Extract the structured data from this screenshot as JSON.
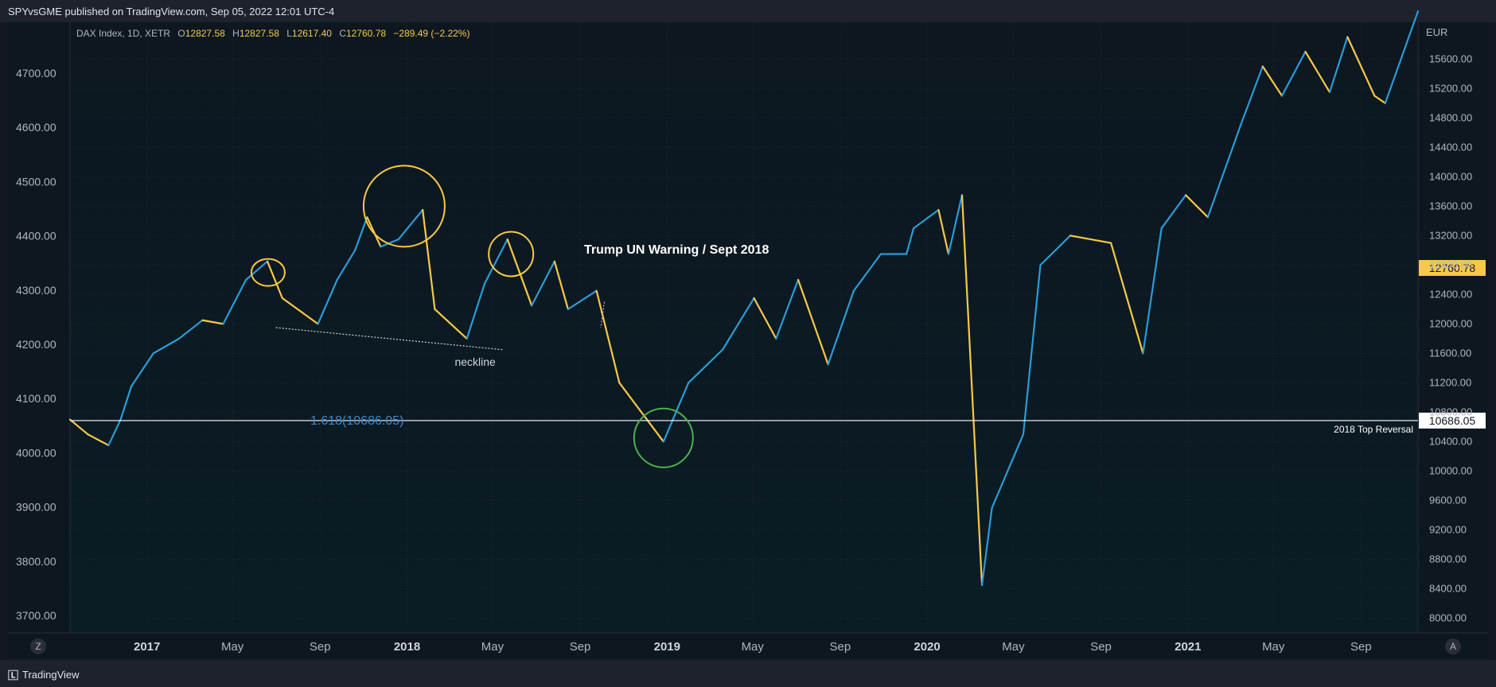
{
  "header": {
    "publisher": "SPYvsGME published on TradingView.com, Sep 05, 2022 12:01 UTC-4"
  },
  "footer": {
    "brand": "TradingView"
  },
  "legend": {
    "symbol": "DAX Index, 1D, XETR",
    "open_label": "O",
    "open": "12827.58",
    "high_label": "H",
    "high": "12827.58",
    "low_label": "L",
    "low": "12617.40",
    "close_label": "C",
    "close": "12760.78",
    "change": "−289.49 (−2.22%)"
  },
  "buttons": {
    "left_scale": "Z",
    "right_scale": "A"
  },
  "colors": {
    "background": "#0c1a23",
    "up": "#2b9bd6",
    "down": "#f7c948",
    "grid": "#1f2b35",
    "circle_yellow": "#f7c948",
    "circle_green": "#4caf50",
    "fib": "#3f86c9"
  },
  "chart_data": {
    "type": "line",
    "title": "DAX Index, 1D, XETR",
    "currency": "EUR",
    "right_axis_ticks": [
      "15600.00",
      "15200.00",
      "14800.00",
      "14400.00",
      "14000.00",
      "13600.00",
      "13200.00",
      "12800.00",
      "12400.00",
      "12000.00",
      "11600.00",
      "11200.00",
      "10800.00",
      "10400.00",
      "10000.00",
      "9600.00",
      "9200.00",
      "8800.00",
      "8400.00",
      "8000.00"
    ],
    "left_axis_ticks": [
      "4700.00",
      "4600.00",
      "4500.00",
      "4400.00",
      "4300.00",
      "4200.00",
      "4100.00",
      "4000.00",
      "3900.00",
      "3800.00",
      "3700.00"
    ],
    "x_axis_ticks": [
      {
        "label": "2017",
        "bold": true
      },
      {
        "label": "May",
        "bold": false
      },
      {
        "label": "Sep",
        "bold": false
      },
      {
        "label": "2018",
        "bold": true
      },
      {
        "label": "May",
        "bold": false
      },
      {
        "label": "Sep",
        "bold": false
      },
      {
        "label": "2019",
        "bold": true
      },
      {
        "label": "May",
        "bold": false
      },
      {
        "label": "Sep",
        "bold": false
      },
      {
        "label": "2020",
        "bold": true
      },
      {
        "label": "May",
        "bold": false
      },
      {
        "label": "Sep",
        "bold": false
      },
      {
        "label": "2021",
        "bold": true
      },
      {
        "label": "May",
        "bold": false
      },
      {
        "label": "Sep",
        "bold": false
      }
    ],
    "ylim": [
      7800,
      16100
    ],
    "xlim": [
      "2016-09-15",
      "2021-11-20"
    ],
    "series": [
      {
        "points": [
          [
            "2016-09-15",
            10700
          ],
          [
            "2016-10-10",
            10500
          ],
          [
            "2016-11-08",
            10350
          ],
          [
            "2016-11-25",
            10700
          ],
          [
            "2016-12-10",
            11150
          ],
          [
            "2017-01-10",
            11600
          ],
          [
            "2017-02-15",
            11800
          ],
          [
            "2017-03-20",
            12050
          ],
          [
            "2017-04-18",
            12000
          ],
          [
            "2017-05-20",
            12600
          ],
          [
            "2017-06-19",
            12850
          ],
          [
            "2017-07-10",
            12350
          ],
          [
            "2017-08-29",
            12000
          ],
          [
            "2017-09-25",
            12600
          ],
          [
            "2017-10-20",
            13000
          ],
          [
            "2017-11-06",
            13450
          ],
          [
            "2017-11-25",
            13050
          ],
          [
            "2017-12-20",
            13150
          ],
          [
            "2018-01-23",
            13550
          ],
          [
            "2018-02-09",
            12200
          ],
          [
            "2018-03-26",
            11800
          ],
          [
            "2018-04-20",
            12550
          ],
          [
            "2018-05-22",
            13150
          ],
          [
            "2018-06-25",
            12250
          ],
          [
            "2018-07-27",
            12850
          ],
          [
            "2018-08-15",
            12200
          ],
          [
            "2018-09-24",
            12450
          ],
          [
            "2018-10-26",
            11200
          ],
          [
            "2018-12-27",
            10400
          ],
          [
            "2019-01-31",
            11200
          ],
          [
            "2019-03-20",
            11650
          ],
          [
            "2019-05-03",
            12350
          ],
          [
            "2019-06-03",
            11800
          ],
          [
            "2019-07-04",
            12600
          ],
          [
            "2019-08-15",
            11450
          ],
          [
            "2019-09-20",
            12450
          ],
          [
            "2019-10-28",
            12950
          ],
          [
            "2019-12-03",
            12950
          ],
          [
            "2019-12-13",
            13300
          ],
          [
            "2020-01-17",
            13550
          ],
          [
            "2020-01-31",
            12950
          ],
          [
            "2020-02-19",
            13750
          ],
          [
            "2020-03-18",
            8450
          ],
          [
            "2020-04-01",
            9500
          ],
          [
            "2020-05-15",
            10500
          ],
          [
            "2020-06-08",
            12800
          ],
          [
            "2020-07-20",
            13200
          ],
          [
            "2020-09-15",
            13100
          ],
          [
            "2020-10-30",
            11600
          ],
          [
            "2020-11-25",
            13300
          ],
          [
            "2020-12-29",
            13750
          ],
          [
            "2021-01-29",
            13450
          ],
          [
            "2021-03-16",
            14700
          ],
          [
            "2021-04-16",
            15500
          ],
          [
            "2021-05-13",
            15100
          ],
          [
            "2021-06-15",
            15700
          ],
          [
            "2021-07-19",
            15150
          ],
          [
            "2021-08-13",
            15900
          ],
          [
            "2021-09-20",
            15100
          ],
          [
            "2021-10-05",
            15000
          ],
          [
            "2021-11-20",
            16250
          ]
        ]
      }
    ],
    "price_marker": {
      "value": 12760.78,
      "label": "12760.78"
    },
    "level_line": {
      "value": 10686.05,
      "label": "10686.05",
      "name": "2018 Top Reversal"
    },
    "fib_label": "1.618(10686.05)",
    "annotations": {
      "neckline": "neckline",
      "trump": "Trump UN Warning / Sept 2018"
    },
    "neckline": [
      [
        "2017-07-01",
        11950
      ],
      [
        "2018-05-15",
        11650
      ]
    ],
    "trump_pointer": [
      [
        "2018-10-05",
        12300
      ],
      [
        "2018-09-30",
        11950
      ]
    ],
    "circles": [
      {
        "x": "2017-06-20",
        "y": 12700,
        "rx": 21,
        "ry": 17,
        "color": "yellow"
      },
      {
        "x": "2017-12-28",
        "y": 13600,
        "rx": 51,
        "ry": 51,
        "color": "yellow"
      },
      {
        "x": "2018-05-27",
        "y": 12950,
        "rx": 28,
        "ry": 28,
        "color": "yellow"
      },
      {
        "x": "2018-12-27",
        "y": 10450,
        "rx": 37,
        "ry": 37,
        "color": "green"
      }
    ]
  }
}
